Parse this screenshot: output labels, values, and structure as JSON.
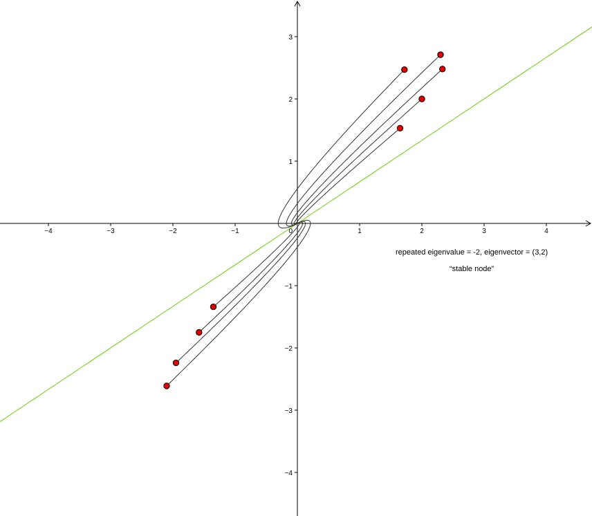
{
  "chart_data": {
    "type": "line",
    "xlim": [
      -4.7,
      4.7
    ],
    "ylim": [
      -4.7,
      3.55
    ],
    "x_ticks": [
      -4,
      -3,
      -2,
      -1,
      1,
      2,
      3,
      4
    ],
    "y_ticks": [
      -4,
      -3,
      -2,
      -1,
      1,
      2,
      3
    ],
    "origin_label": "0",
    "grid": false,
    "eigenvalue": -2,
    "eigenvector": [
      3,
      2
    ],
    "eigenvector_line_color": "#66cc00",
    "trajectory_color": "#333333",
    "point_color": "#e00000",
    "initial_points": [
      [
        1.72,
        2.47
      ],
      [
        2.3,
        2.71
      ],
      [
        2.33,
        2.48
      ],
      [
        2.0,
        2.0
      ],
      [
        1.65,
        1.53
      ],
      [
        -1.35,
        -1.34
      ],
      [
        -1.58,
        -1.75
      ],
      [
        -1.95,
        -2.24
      ],
      [
        -2.1,
        -2.61
      ]
    ],
    "annotations": [
      "repeated eigenvalue = -2, eigenvector = (3,2)",
      "“stable node”"
    ]
  }
}
